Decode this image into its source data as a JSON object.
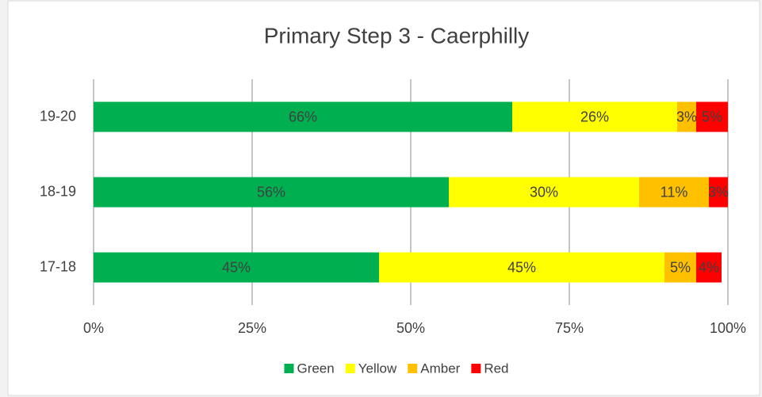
{
  "chart_data": {
    "type": "stacked-bar-horizontal",
    "title": "Primary Step 3 - Caerphilly",
    "categories": [
      "19-20",
      "18-19",
      "17-18"
    ],
    "series": [
      {
        "name": "Green",
        "color": "#00b050",
        "values": [
          66,
          56,
          45
        ],
        "value_labels": [
          "66%",
          "56%",
          "45%"
        ]
      },
      {
        "name": "Yellow",
        "color": "#ffff00",
        "values": [
          26,
          30,
          45
        ],
        "value_labels": [
          "26%",
          "30%",
          "45%"
        ]
      },
      {
        "name": "Amber",
        "color": "#ffc000",
        "values": [
          3,
          11,
          5
        ],
        "value_labels": [
          "3%",
          "11%",
          "5%"
        ]
      },
      {
        "name": "Red",
        "color": "#ff0000",
        "values": [
          5,
          3,
          4
        ],
        "value_labels": [
          "5%",
          "3%",
          "4%"
        ]
      }
    ],
    "xlim": [
      0,
      100
    ],
    "xticks": [
      {
        "value": 0,
        "label": "0%"
      },
      {
        "value": 25,
        "label": "25%"
      },
      {
        "value": 50,
        "label": "50%"
      },
      {
        "value": 75,
        "label": "75%"
      },
      {
        "value": 100,
        "label": "100%"
      }
    ],
    "grid": true,
    "legend": "bottom"
  }
}
